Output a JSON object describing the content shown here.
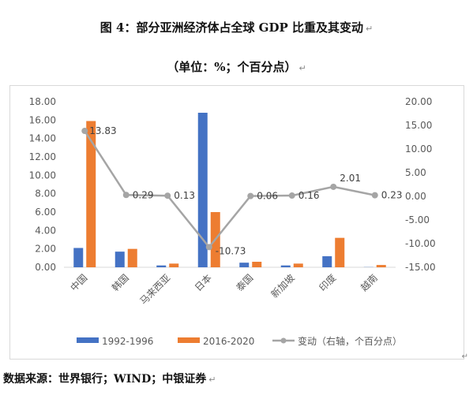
{
  "title": "图 4：部分亚洲经济体占全球 GDP 比重及其变动",
  "subtitle": "（单位：%；个百分点）",
  "source": "数据来源：世界银行；WIND；中银证券",
  "chart_data": {
    "type": "bar",
    "categories": [
      "中国",
      "韩国",
      "马来西亚",
      "日本",
      "泰国",
      "新加坡",
      "印度",
      "越南"
    ],
    "series": [
      {
        "name": "1992-1996",
        "type": "bar",
        "axis": "left",
        "color": "#4472c4",
        "values": [
          2.1,
          1.7,
          0.2,
          16.8,
          0.5,
          0.2,
          1.2,
          0.02
        ]
      },
      {
        "name": "2016-2020",
        "type": "bar",
        "axis": "left",
        "color": "#ed7d31",
        "values": [
          15.9,
          2.0,
          0.4,
          6.0,
          0.6,
          0.4,
          3.2,
          0.25
        ]
      },
      {
        "name": "变动（右轴，个百分点）",
        "type": "line",
        "axis": "right",
        "color": "#a5a5a5",
        "values": [
          13.83,
          0.29,
          0.13,
          -10.73,
          0.06,
          0.16,
          2.01,
          0.23
        ]
      }
    ],
    "data_labels": [
      "13.83",
      "0.29",
      "0.13",
      "-10.73",
      "0.06",
      "0.16",
      "2.01",
      "0.23"
    ],
    "y_left": {
      "lim": [
        0,
        18
      ],
      "ticks": [
        "0.00",
        "2.00",
        "4.00",
        "6.00",
        "8.00",
        "10.00",
        "12.00",
        "14.00",
        "16.00",
        "18.00"
      ]
    },
    "y_right": {
      "lim": [
        -15,
        20
      ],
      "ticks": [
        "-15.00",
        "-10.00",
        "-5.00",
        "0.00",
        "5.00",
        "10.00",
        "15.00",
        "20.00"
      ]
    },
    "legend": {
      "placement": "bottom",
      "items": [
        "1992-1996",
        "2016-2020",
        "变动（右轴，个百分点）"
      ]
    },
    "grid": false
  }
}
